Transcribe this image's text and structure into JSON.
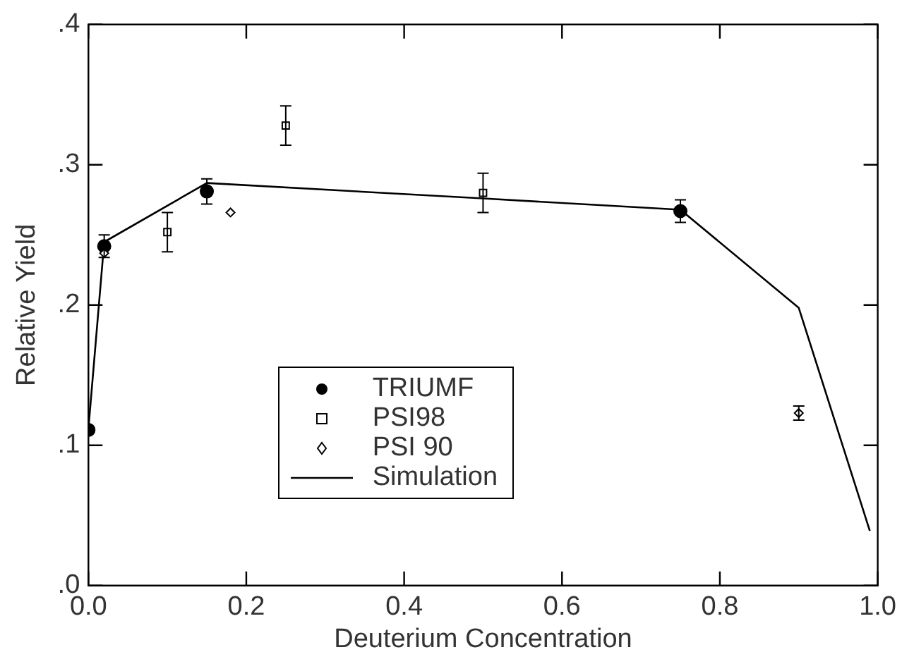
{
  "chart_data": {
    "type": "scatter",
    "xlabel": "Deuterium Concentration",
    "ylabel": "Relative Yield",
    "xlim": [
      0,
      1
    ],
    "ylim": [
      0,
      0.4
    ],
    "xticks": [
      {
        "value": 0,
        "label": "0.0"
      },
      {
        "value": 0.2,
        "label": "0.2"
      },
      {
        "value": 0.4,
        "label": "0.4"
      },
      {
        "value": 0.6,
        "label": "0.6"
      },
      {
        "value": 0.8,
        "label": "0.8"
      },
      {
        "value": 1,
        "label": "1.0"
      }
    ],
    "yticks": [
      {
        "value": 0,
        "label": ".0"
      },
      {
        "value": 0.1,
        "label": ".1"
      },
      {
        "value": 0.2,
        "label": ".2"
      },
      {
        "value": 0.3,
        "label": ".3"
      },
      {
        "value": 0.4,
        "label": ".4"
      }
    ],
    "grid": false,
    "legend": "bottom",
    "series": [
      {
        "name": "TRIUMF",
        "marker": "circle",
        "color": "#000000",
        "x": [
          0,
          0.02,
          0.15,
          0.75
        ],
        "values": [
          0.111,
          0.242,
          0.281,
          0.267
        ],
        "errors": [
          null,
          0.008,
          0.009,
          0.008
        ]
      },
      {
        "name": "PSI98",
        "marker": "square",
        "color": "#000000",
        "x": [
          0.1,
          0.25,
          0.5
        ],
        "values": [
          0.252,
          0.328,
          0.28
        ],
        "errors": [
          0.014,
          0.014,
          0.014
        ]
      },
      {
        "name": "PSI 90",
        "marker": "diamond",
        "color": "#000000",
        "x": [
          0.02,
          0.18,
          0.9
        ],
        "values": [
          0.237,
          0.266,
          0.123
        ],
        "errors": [
          null,
          null,
          0.005
        ]
      },
      {
        "name": "Simulation",
        "type": "line",
        "marker": "none",
        "line_style": "solid",
        "color": "#000000",
        "x": [
          0,
          0.02,
          0.15,
          0.5,
          0.75,
          0.9,
          0.99
        ],
        "values": [
          0.112,
          0.245,
          0.287,
          0.276,
          0.268,
          0.198,
          0.039
        ]
      }
    ]
  }
}
